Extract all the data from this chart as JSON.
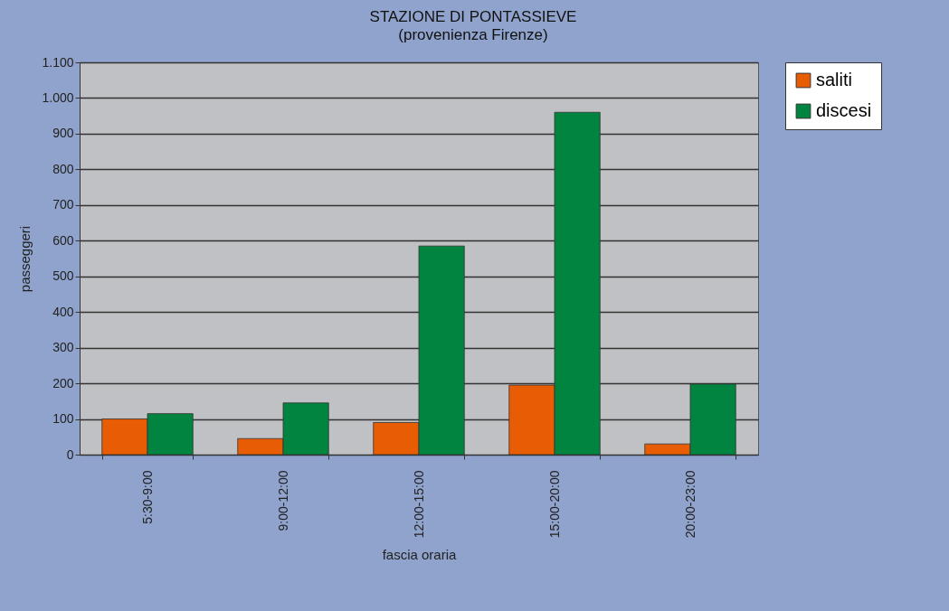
{
  "chart_data": {
    "type": "bar",
    "title": "STAZIONE DI PONTASSIEVE",
    "subtitle": "(provenienza Firenze)",
    "xlabel": "fascia oraria",
    "ylabel": "passeggeri",
    "categories": [
      "5:30-9:00",
      "9:00-12:00",
      "12:00-15:00",
      "15:00-20:00",
      "20:00-23:00"
    ],
    "series": [
      {
        "name": "saliti",
        "color": "#e85d04",
        "values": [
          100,
          45,
          90,
          195,
          30
        ]
      },
      {
        "name": "discesi",
        "color": "#00843f",
        "values": [
          115,
          145,
          585,
          960,
          198
        ]
      }
    ],
    "ylim": [
      0,
      1100
    ],
    "yticks": [
      0,
      100,
      200,
      300,
      400,
      500,
      600,
      700,
      800,
      900,
      {
        "value": 1000,
        "label": "1.000"
      },
      {
        "value": 1100,
        "label": "1.100"
      }
    ],
    "grid": "y",
    "legend": "right"
  }
}
